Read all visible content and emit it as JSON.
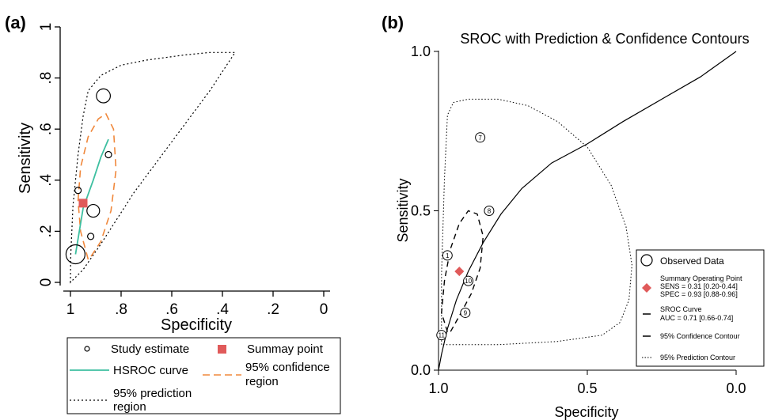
{
  "chart_data": [
    {
      "panel_label": "(a)",
      "type": "scatter",
      "title": "",
      "xlabel": "Specificity",
      "ylabel": "Sensitivity",
      "x_reversed": true,
      "xlim": [
        1,
        0
      ],
      "ylim": [
        0,
        1
      ],
      "x_ticks": [
        1,
        0.8,
        0.6,
        0.4,
        0.2,
        0
      ],
      "x_tick_labels": [
        "1",
        ".8",
        ".6",
        ".4",
        ".2",
        "0"
      ],
      "y_ticks": [
        0,
        0.2,
        0.4,
        0.6,
        0.8,
        1
      ],
      "y_tick_labels": [
        "0",
        ".2",
        ".4",
        ".6",
        ".8",
        "1"
      ],
      "study_estimates": [
        {
          "spec": 0.98,
          "sens": 0.11,
          "weight": 3
        },
        {
          "spec": 0.97,
          "sens": 0.36,
          "weight": 1
        },
        {
          "spec": 0.92,
          "sens": 0.18,
          "weight": 1
        },
        {
          "spec": 0.91,
          "sens": 0.28,
          "weight": 2
        },
        {
          "spec": 0.87,
          "sens": 0.73,
          "weight": 2.2
        },
        {
          "spec": 0.85,
          "sens": 0.5,
          "weight": 1
        }
      ],
      "summary_point": {
        "spec": 0.95,
        "sens": 0.31
      },
      "hsroc_curve": {
        "spec": [
          0.98,
          0.95,
          0.91,
          0.88,
          0.85
        ],
        "sens": [
          0.11,
          0.29,
          0.4,
          0.49,
          0.56
        ]
      },
      "confidence_region": {
        "spec": [
          0.93,
          0.96,
          0.97,
          0.96,
          0.93,
          0.89,
          0.86,
          0.83,
          0.82,
          0.84,
          0.88,
          0.92,
          0.93
        ],
        "sens": [
          0.09,
          0.2,
          0.32,
          0.45,
          0.57,
          0.64,
          0.66,
          0.6,
          0.44,
          0.28,
          0.16,
          0.1,
          0.09
        ]
      },
      "prediction_region": {
        "spec": [
          1.0,
          0.999,
          0.99,
          0.97,
          0.95,
          0.93,
          0.88,
          0.8,
          0.7,
          0.55,
          0.45,
          0.4,
          0.38,
          0.35,
          0.45,
          0.6,
          0.75,
          0.88,
          0.95,
          1.0
        ],
        "sens": [
          0.0,
          0.1,
          0.3,
          0.5,
          0.65,
          0.75,
          0.81,
          0.85,
          0.87,
          0.89,
          0.9,
          0.9,
          0.9,
          0.9,
          0.75,
          0.55,
          0.35,
          0.15,
          0.05,
          0.0
        ]
      },
      "legend": {
        "placement": "bottom",
        "entries": [
          {
            "key": "study",
            "label": "Study estimate"
          },
          {
            "key": "summary",
            "label": "Summay point"
          },
          {
            "key": "hsroc",
            "label": "HSROC curve"
          },
          {
            "key": "conf",
            "label_lines": [
              "95% confidence",
              "region"
            ]
          },
          {
            "key": "pred",
            "label_lines": [
              "95% prediction",
              "region"
            ]
          }
        ]
      },
      "colors": {
        "hsroc": "#3dbfa0",
        "conf": "#f0883c",
        "summary": "#e05a5a",
        "pred": "#000000"
      }
    },
    {
      "panel_label": "(b)",
      "type": "scatter",
      "title": "SROC with Prediction & Confidence Contours",
      "xlabel": "Specificity",
      "ylabel": "Sensitivity",
      "x_reversed": true,
      "xlim": [
        1,
        0
      ],
      "ylim": [
        0,
        1
      ],
      "x_ticks": [
        1,
        0.5,
        0
      ],
      "x_tick_labels": [
        "1.0",
        "0.5",
        "0.0"
      ],
      "y_ticks": [
        0,
        0.5,
        1
      ],
      "y_tick_labels": [
        "0.0",
        "0.5",
        "1.0"
      ],
      "observed": [
        {
          "id": "7",
          "spec": 0.86,
          "sens": 0.73
        },
        {
          "id": "8",
          "spec": 0.83,
          "sens": 0.5
        },
        {
          "id": "1",
          "spec": 0.97,
          "sens": 0.36
        },
        {
          "id": "10",
          "spec": 0.9,
          "sens": 0.28
        },
        {
          "id": "9",
          "spec": 0.91,
          "sens": 0.18
        },
        {
          "id": "11",
          "spec": 0.99,
          "sens": 0.11
        }
      ],
      "summary_point": {
        "spec": 0.93,
        "sens": 0.31
      },
      "sroc_curve": {
        "spec": [
          1.0,
          0.99,
          0.97,
          0.94,
          0.9,
          0.85,
          0.79,
          0.72,
          0.62,
          0.5,
          0.38,
          0.25,
          0.12,
          0.0
        ],
        "sens": [
          0.0,
          0.05,
          0.13,
          0.22,
          0.31,
          0.4,
          0.49,
          0.57,
          0.65,
          0.71,
          0.78,
          0.85,
          0.92,
          1.0
        ]
      },
      "confidence_contour": {
        "spec": [
          0.97,
          0.99,
          0.98,
          0.96,
          0.93,
          0.9,
          0.87,
          0.85,
          0.86,
          0.89,
          0.93,
          0.96,
          0.97
        ],
        "sens": [
          0.12,
          0.18,
          0.28,
          0.38,
          0.46,
          0.5,
          0.49,
          0.42,
          0.32,
          0.24,
          0.17,
          0.12,
          0.12
        ]
      },
      "prediction_contour": {
        "spec": [
          0.99,
          0.99,
          0.98,
          0.97,
          0.95,
          0.9,
          0.8,
          0.7,
          0.6,
          0.5,
          0.42,
          0.37,
          0.35,
          0.36,
          0.39,
          0.45,
          0.6,
          0.8,
          0.95,
          0.99
        ],
        "sens": [
          0.08,
          0.3,
          0.6,
          0.8,
          0.84,
          0.85,
          0.85,
          0.83,
          0.78,
          0.7,
          0.58,
          0.45,
          0.33,
          0.22,
          0.15,
          0.11,
          0.09,
          0.08,
          0.08,
          0.08
        ]
      },
      "legend": {
        "placement": "bottom-right",
        "entries": [
          {
            "key": "obs",
            "label_lines": [
              "Observed Data"
            ]
          },
          {
            "key": "sop",
            "label_lines": [
              "Summary Operating Point",
              "SENS = 0.31 [0.20-0.44]",
              "SPEC = 0.93 [0.88-0.96]"
            ]
          },
          {
            "key": "sroc",
            "label_lines": [
              "SROC Curve",
              "AUC = 0.71 [0.66-0.74]"
            ]
          },
          {
            "key": "conf",
            "label_lines": [
              "95% Confidence Contour"
            ]
          },
          {
            "key": "pred",
            "label_lines": [
              "95% Prediction Contour"
            ]
          }
        ]
      },
      "colors": {
        "summary": "#e05a5a",
        "line": "#000000"
      }
    }
  ]
}
